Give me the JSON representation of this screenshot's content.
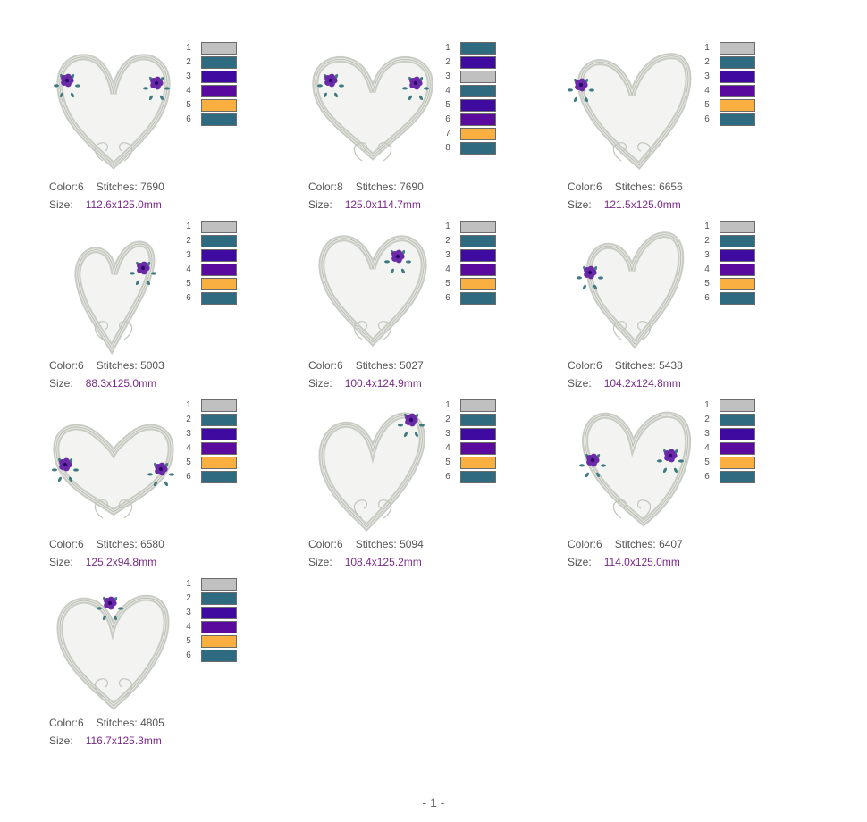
{
  "labels": {
    "color": "Color:",
    "stitches": "Stitches:",
    "size": "Size:"
  },
  "thread_colors": {
    "gray": "#c0c0c0",
    "teal": "#2e6a80",
    "blue_violet": "#3f0aa0",
    "purple": "#5a0a9c",
    "orange": "#f9b040"
  },
  "designs": [
    {
      "color_count": "6",
      "stitches": "7690",
      "size": "112.6x125.0mm",
      "palette": [
        {
          "n": "1",
          "c": "gray"
        },
        {
          "n": "2",
          "c": "teal"
        },
        {
          "n": "3",
          "c": "blue_violet"
        },
        {
          "n": "4",
          "c": "purple"
        },
        {
          "n": "5",
          "c": "orange"
        },
        {
          "n": "6",
          "c": "teal"
        }
      ]
    },
    {
      "color_count": "8",
      "stitches": "7690",
      "size": "125.0x114.7mm",
      "palette": [
        {
          "n": "1",
          "c": "teal"
        },
        {
          "n": "2",
          "c": "blue_violet"
        },
        {
          "n": "3",
          "c": "gray"
        },
        {
          "n": "4",
          "c": "teal"
        },
        {
          "n": "5",
          "c": "blue_violet"
        },
        {
          "n": "6",
          "c": "purple"
        },
        {
          "n": "7",
          "c": "orange"
        },
        {
          "n": "8",
          "c": "teal"
        }
      ]
    },
    {
      "color_count": "6",
      "stitches": "6656",
      "size": "121.5x125.0mm",
      "palette": [
        {
          "n": "1",
          "c": "gray"
        },
        {
          "n": "2",
          "c": "teal"
        },
        {
          "n": "3",
          "c": "blue_violet"
        },
        {
          "n": "4",
          "c": "purple"
        },
        {
          "n": "5",
          "c": "orange"
        },
        {
          "n": "6",
          "c": "teal"
        }
      ]
    },
    {
      "color_count": "6",
      "stitches": "5003",
      "size": "88.3x125.0mm",
      "palette": [
        {
          "n": "1",
          "c": "gray"
        },
        {
          "n": "2",
          "c": "teal"
        },
        {
          "n": "3",
          "c": "blue_violet"
        },
        {
          "n": "4",
          "c": "purple"
        },
        {
          "n": "5",
          "c": "orange"
        },
        {
          "n": "6",
          "c": "teal"
        }
      ]
    },
    {
      "color_count": "6",
      "stitches": "5027",
      "size": "100.4x124.9mm",
      "palette": [
        {
          "n": "1",
          "c": "gray"
        },
        {
          "n": "2",
          "c": "teal"
        },
        {
          "n": "3",
          "c": "blue_violet"
        },
        {
          "n": "4",
          "c": "purple"
        },
        {
          "n": "5",
          "c": "orange"
        },
        {
          "n": "6",
          "c": "teal"
        }
      ]
    },
    {
      "color_count": "6",
      "stitches": "5438",
      "size": "104.2x124.8mm",
      "palette": [
        {
          "n": "1",
          "c": "gray"
        },
        {
          "n": "2",
          "c": "teal"
        },
        {
          "n": "3",
          "c": "blue_violet"
        },
        {
          "n": "4",
          "c": "purple"
        },
        {
          "n": "5",
          "c": "orange"
        },
        {
          "n": "6",
          "c": "teal"
        }
      ]
    },
    {
      "color_count": "6",
      "stitches": "6580",
      "size": "125.2x94.8mm",
      "palette": [
        {
          "n": "1",
          "c": "gray"
        },
        {
          "n": "2",
          "c": "teal"
        },
        {
          "n": "3",
          "c": "blue_violet"
        },
        {
          "n": "4",
          "c": "purple"
        },
        {
          "n": "5",
          "c": "orange"
        },
        {
          "n": "6",
          "c": "teal"
        }
      ]
    },
    {
      "color_count": "6",
      "stitches": "5094",
      "size": "108.4x125.2mm",
      "palette": [
        {
          "n": "1",
          "c": "gray"
        },
        {
          "n": "2",
          "c": "teal"
        },
        {
          "n": "3",
          "c": "blue_violet"
        },
        {
          "n": "4",
          "c": "purple"
        },
        {
          "n": "5",
          "c": "orange"
        },
        {
          "n": "6",
          "c": "teal"
        }
      ]
    },
    {
      "color_count": "6",
      "stitches": "6407",
      "size": "114.0x125.0mm",
      "palette": [
        {
          "n": "1",
          "c": "gray"
        },
        {
          "n": "2",
          "c": "teal"
        },
        {
          "n": "3",
          "c": "blue_violet"
        },
        {
          "n": "4",
          "c": "purple"
        },
        {
          "n": "5",
          "c": "orange"
        },
        {
          "n": "6",
          "c": "teal"
        }
      ]
    },
    {
      "color_count": "6",
      "stitches": "4805",
      "size": "116.7x125.3mm",
      "palette": [
        {
          "n": "1",
          "c": "gray"
        },
        {
          "n": "2",
          "c": "teal"
        },
        {
          "n": "3",
          "c": "blue_violet"
        },
        {
          "n": "4",
          "c": "purple"
        },
        {
          "n": "5",
          "c": "orange"
        },
        {
          "n": "6",
          "c": "teal"
        }
      ]
    }
  ],
  "page_number": "- 1 -"
}
